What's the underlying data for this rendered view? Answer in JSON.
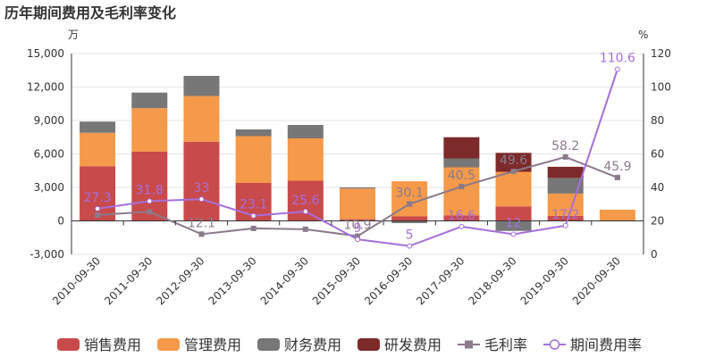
{
  "chart_data": {
    "type": "bar",
    "title": "历年期间费用及毛利率变化",
    "y_left_unit": "万",
    "y_right_unit": "%",
    "ylim_left": [
      -3000,
      15000
    ],
    "ylim_right": [
      0,
      120
    ],
    "y_left_ticks": [
      "-3,000",
      "0",
      "3,000",
      "6,000",
      "9,000",
      "12,000",
      "15,000"
    ],
    "y_right_ticks": [
      "0",
      "20",
      "40",
      "60",
      "80",
      "100",
      "120"
    ],
    "categories": [
      "2010-09-30",
      "2011-09-30",
      "2012-09-30",
      "2013-09-30",
      "2014-09-30",
      "2015-09-30",
      "2016-09-30",
      "2017-09-30",
      "2018-09-30",
      "2019-09-30",
      "2020-09-30"
    ],
    "series": [
      {
        "name": "销售费用",
        "kind": "bar",
        "color": "#c94a4a",
        "values": [
          4900,
          6200,
          7100,
          3400,
          3600,
          150,
          400,
          500,
          1300,
          450,
          0
        ]
      },
      {
        "name": "管理费用",
        "kind": "bar",
        "color": "#f5994a",
        "values": [
          3000,
          3900,
          4100,
          4200,
          3800,
          2750,
          3150,
          4300,
          3100,
          2000,
          1000
        ]
      },
      {
        "name": "财务费用",
        "kind": "bar",
        "color": "#777777",
        "values": [
          1000,
          1400,
          1800,
          600,
          1200,
          100,
          -200,
          800,
          -900,
          1400,
          0
        ]
      },
      {
        "name": "研发费用",
        "kind": "bar",
        "color": "#7d2a2a",
        "values": [
          0,
          0,
          0,
          0,
          0,
          0,
          0,
          1900,
          1700,
          1000,
          0
        ]
      },
      {
        "name": "毛利率",
        "kind": "line",
        "axis": "right",
        "color": "#8a7b8a",
        "values": [
          23.5,
          25.5,
          12.1,
          15.5,
          15.0,
          10.9,
          30.1,
          40.5,
          49.6,
          58.2,
          45.9
        ],
        "labels": [
          "",
          "",
          "12.1",
          "",
          "",
          "10.9",
          "30.1",
          "40.5",
          "49.6",
          "58.2",
          "45.9"
        ]
      },
      {
        "name": "期间费用率",
        "kind": "line",
        "axis": "right",
        "color": "#a66fdc",
        "values": [
          27.3,
          31.8,
          33.0,
          23.1,
          25.6,
          9.0,
          5.0,
          16.6,
          12.0,
          17.2,
          110.6
        ],
        "labels": [
          "27.3",
          "31.8",
          "33",
          "23.1",
          "25.6",
          "9",
          "5",
          "16.6",
          "12",
          "17.2",
          "110.6"
        ]
      }
    ],
    "legend": {
      "position": "bottom"
    },
    "grid": true
  }
}
